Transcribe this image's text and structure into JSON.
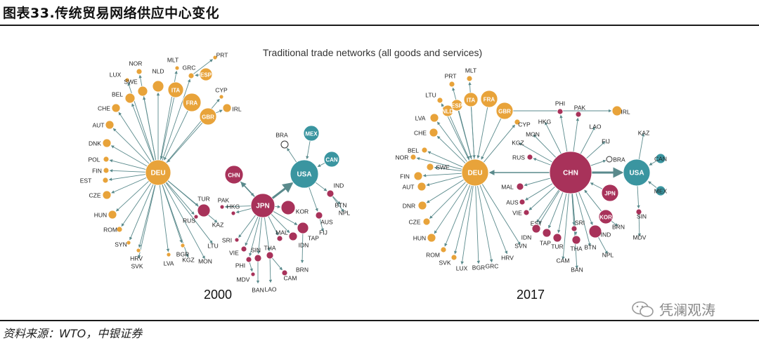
{
  "page_title": "图表33.传统贸易网络供应中心变化",
  "diagram_title": "Traditional trade networks (all goods and services)",
  "source_note": "资料来源：WTO，中银证券",
  "watermark_text": "凭澜观涛",
  "colors": {
    "europe": "#E8A33A",
    "asia": "#A8325A",
    "america": "#3A95A0",
    "line": "#5a8a8c"
  },
  "panels": [
    {
      "year": "2000",
      "hubs": [
        "DEU",
        "USA",
        "JPN"
      ],
      "nodes": [
        {
          "id": "DEU",
          "hub": true,
          "group": "europe"
        },
        {
          "id": "NOR"
        },
        {
          "id": "LUX"
        },
        {
          "id": "SWE"
        },
        {
          "id": "NLD"
        },
        {
          "id": "MLT"
        },
        {
          "id": "GRC"
        },
        {
          "id": "PRT"
        },
        {
          "id": "ESP",
          "in": true
        },
        {
          "id": "ITA",
          "in": true
        },
        {
          "id": "FRA",
          "in": true
        },
        {
          "id": "GBR",
          "in": true
        },
        {
          "id": "CYP"
        },
        {
          "id": "IRL"
        },
        {
          "id": "BEL"
        },
        {
          "id": "CHE"
        },
        {
          "id": "AUT"
        },
        {
          "id": "DNK"
        },
        {
          "id": "POL"
        },
        {
          "id": "FIN"
        },
        {
          "id": "EST"
        },
        {
          "id": "CZE"
        },
        {
          "id": "HUN"
        },
        {
          "id": "ROM"
        },
        {
          "id": "SYN"
        },
        {
          "id": "HRV"
        },
        {
          "id": "SVK"
        },
        {
          "id": "LVA"
        },
        {
          "id": "BGR"
        },
        {
          "id": "KGZ"
        },
        {
          "id": "MON"
        },
        {
          "id": "RUS"
        },
        {
          "id": "LTU"
        },
        {
          "id": "TUR"
        },
        {
          "id": "PAK"
        },
        {
          "id": "KAZ"
        },
        {
          "id": "HKG"
        },
        {
          "id": "CHN",
          "in": true
        },
        {
          "id": "JPN",
          "hub": true
        },
        {
          "id": "USA",
          "hub": true
        },
        {
          "id": "MEX",
          "in": true
        },
        {
          "id": "CAN",
          "in": true
        },
        {
          "id": "BRA"
        },
        {
          "id": "IND"
        },
        {
          "id": "BTN"
        },
        {
          "id": "NPL"
        },
        {
          "id": "AUS"
        },
        {
          "id": "FIJ"
        },
        {
          "id": "KOR"
        },
        {
          "id": "TAP"
        },
        {
          "id": "IDN"
        },
        {
          "id": "MAL"
        },
        {
          "id": "SRI"
        },
        {
          "id": "VIE"
        },
        {
          "id": "PHI"
        },
        {
          "id": "SIN"
        },
        {
          "id": "THA"
        },
        {
          "id": "MDV"
        },
        {
          "id": "BAN"
        },
        {
          "id": "LAO"
        },
        {
          "id": "CAM"
        },
        {
          "id": "BRN"
        }
      ]
    },
    {
      "year": "2017",
      "hubs": [
        "DEU",
        "CHN",
        "USA"
      ],
      "nodes": [
        {
          "id": "DEU",
          "hub": true
        },
        {
          "id": "CHN",
          "hub": true
        },
        {
          "id": "USA",
          "hub": true
        },
        {
          "id": "PRT"
        },
        {
          "id": "MLT"
        },
        {
          "id": "LTU"
        },
        {
          "id": "NLD",
          "in": true
        },
        {
          "id": "ESP",
          "in": true
        },
        {
          "id": "ITA",
          "in": true
        },
        {
          "id": "FRA",
          "in": true
        },
        {
          "id": "GBR",
          "in": true
        },
        {
          "id": "IRL"
        },
        {
          "id": "CYP"
        },
        {
          "id": "LVA"
        },
        {
          "id": "CHE"
        },
        {
          "id": "BEL"
        },
        {
          "id": "NOR"
        },
        {
          "id": "SWE"
        },
        {
          "id": "FIN"
        },
        {
          "id": "AUT"
        },
        {
          "id": "DNR"
        },
        {
          "id": "CZE"
        },
        {
          "id": "HUN"
        },
        {
          "id": "ROM"
        },
        {
          "id": "SVK"
        },
        {
          "id": "LUX"
        },
        {
          "id": "BGR"
        },
        {
          "id": "GRC"
        },
        {
          "id": "HRV"
        },
        {
          "id": "SVN"
        },
        {
          "id": "HKG"
        },
        {
          "id": "PHI"
        },
        {
          "id": "PAK"
        },
        {
          "id": "MON"
        },
        {
          "id": "LAO"
        },
        {
          "id": "KGZ"
        },
        {
          "id": "FIJ"
        },
        {
          "id": "RUS"
        },
        {
          "id": "BRA"
        },
        {
          "id": "KAZ"
        },
        {
          "id": "CAN",
          "in": true
        },
        {
          "id": "MEX",
          "in": true
        },
        {
          "id": "JPN",
          "in": true
        },
        {
          "id": "KOR",
          "in": true
        },
        {
          "id": "MAL"
        },
        {
          "id": "AUS"
        },
        {
          "id": "VIE"
        },
        {
          "id": "EST"
        },
        {
          "id": "IDN"
        },
        {
          "id": "TAP"
        },
        {
          "id": "TUR"
        },
        {
          "id": "SRI"
        },
        {
          "id": "IND"
        },
        {
          "id": "BRN"
        },
        {
          "id": "THA"
        },
        {
          "id": "BTN"
        },
        {
          "id": "NPL"
        },
        {
          "id": "CAM"
        },
        {
          "id": "BAN"
        },
        {
          "id": "SIN"
        },
        {
          "id": "MDV"
        }
      ]
    }
  ]
}
